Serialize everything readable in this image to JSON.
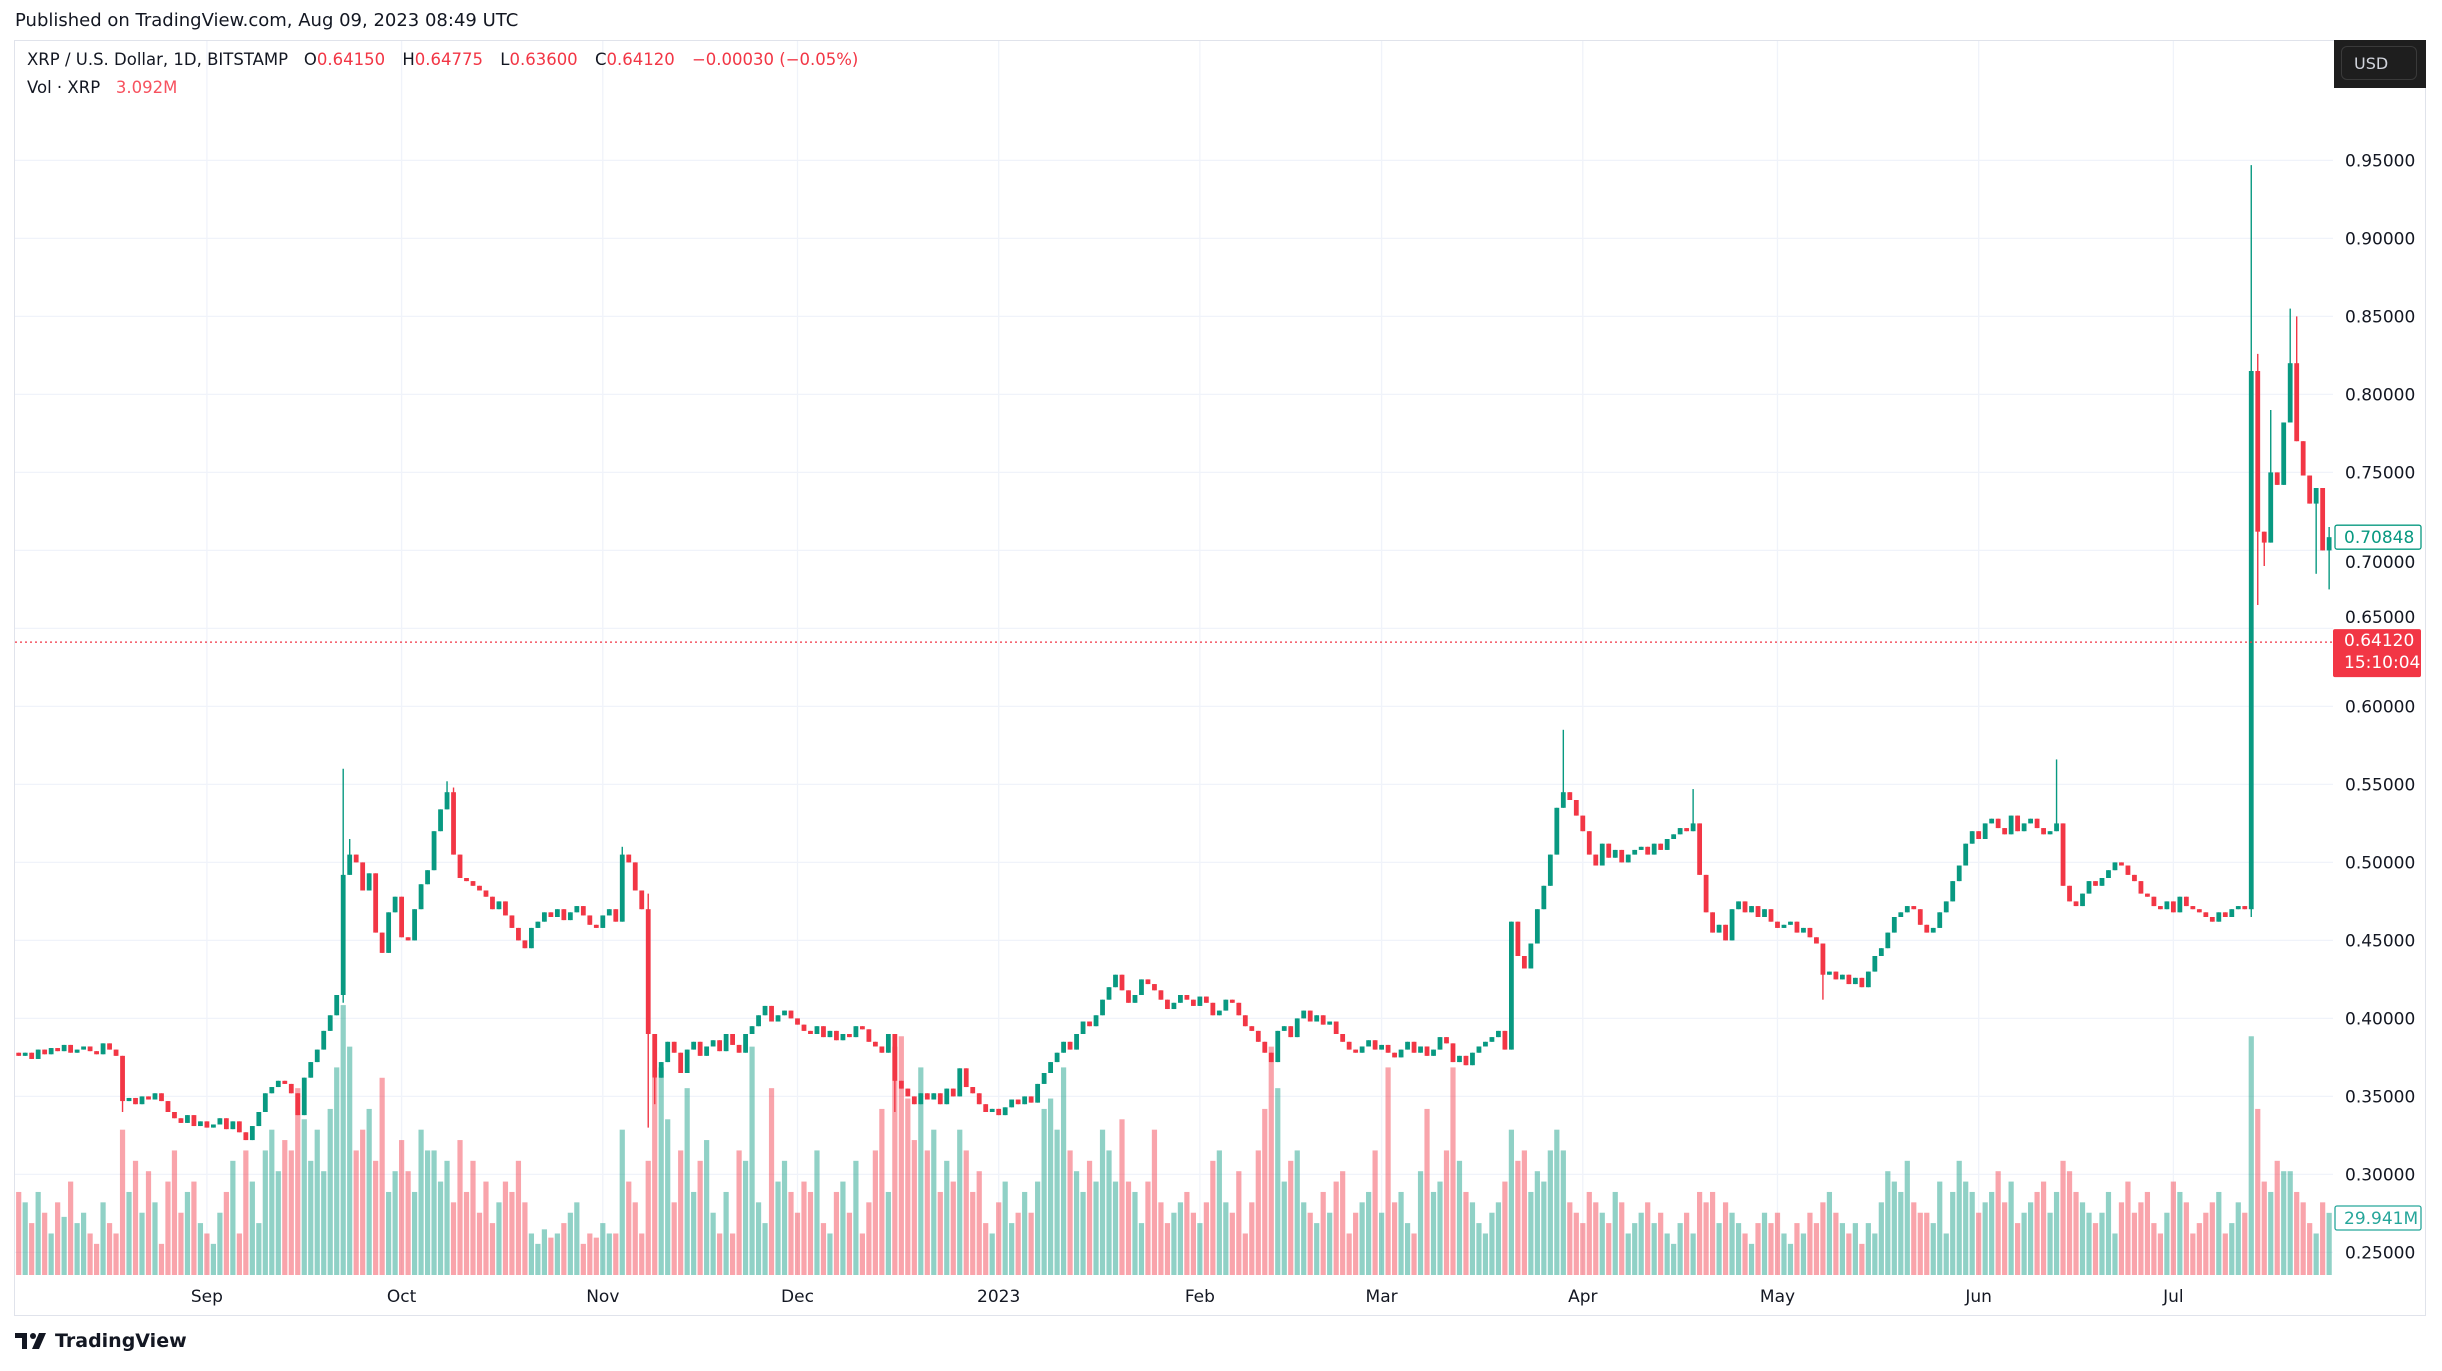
{
  "published": "Published on TradingView.com, Aug 09, 2023 08:49 UTC",
  "legend": {
    "symbol": "XRP / U.S. Dollar, 1D, BITSTAMP",
    "o_label": "O",
    "o": "0.64150",
    "h_label": "H",
    "h": "0.64775",
    "l_label": "L",
    "l": "0.63600",
    "c_label": "C",
    "c": "0.64120",
    "change": "−0.00030 (−0.05%)",
    "vol_label": "Vol · XRP",
    "vol": "3.092M"
  },
  "currency_button": "USD",
  "price_markers": {
    "last_candle_close": "0.70848",
    "current_price": "0.64120",
    "countdown": "15:10:04",
    "last_volume": "29.941M"
  },
  "footer": {
    "logo_text": "TradingView"
  },
  "colors": {
    "up": "#089981",
    "down": "#f23645",
    "grid": "#f0f3fa",
    "text": "#131722"
  },
  "chart_data": {
    "type": "candlestick",
    "interval": "1D",
    "x_start": "2022-08-03",
    "ylim": [
      0.22,
      0.98
    ],
    "current_price": 0.6412,
    "grid": true,
    "y_ticks": [
      "0.25000",
      "0.30000",
      "0.35000",
      "0.40000",
      "0.45000",
      "0.50000",
      "0.55000",
      "0.60000",
      "0.65000",
      "0.70000",
      "0.75000",
      "0.80000",
      "0.85000",
      "0.90000",
      "0.95000"
    ],
    "x_ticks": [
      {
        "label": "Sep",
        "date": "2022-09-01"
      },
      {
        "label": "Oct",
        "date": "2022-10-01"
      },
      {
        "label": "Nov",
        "date": "2022-11-01"
      },
      {
        "label": "Dec",
        "date": "2022-12-01"
      },
      {
        "label": "2023",
        "date": "2023-01-01"
      },
      {
        "label": "Feb",
        "date": "2023-02-01"
      },
      {
        "label": "Mar",
        "date": "2023-03-01"
      },
      {
        "label": "Apr",
        "date": "2023-04-01"
      },
      {
        "label": "May",
        "date": "2023-05-01"
      },
      {
        "label": "Jun",
        "date": "2023-06-01"
      },
      {
        "label": "Jul",
        "date": "2023-07-01"
      }
    ],
    "first_open": 0.378,
    "close": [
      0.376,
      0.378,
      0.374,
      0.38,
      0.377,
      0.381,
      0.379,
      0.383,
      0.378,
      0.38,
      0.382,
      0.379,
      0.377,
      0.384,
      0.38,
      0.376,
      0.347,
      0.349,
      0.345,
      0.35,
      0.348,
      0.352,
      0.347,
      0.34,
      0.336,
      0.333,
      0.338,
      0.331,
      0.334,
      0.33,
      0.332,
      0.336,
      0.329,
      0.334,
      0.327,
      0.322,
      0.331,
      0.34,
      0.352,
      0.356,
      0.36,
      0.358,
      0.352,
      0.338,
      0.362,
      0.372,
      0.38,
      0.392,
      0.402,
      0.415,
      0.492,
      0.505,
      0.5,
      0.482,
      0.493,
      0.455,
      0.442,
      0.468,
      0.478,
      0.452,
      0.45,
      0.47,
      0.486,
      0.495,
      0.52,
      0.534,
      0.545,
      0.505,
      0.49,
      0.488,
      0.485,
      0.482,
      0.478,
      0.47,
      0.475,
      0.466,
      0.458,
      0.45,
      0.445,
      0.458,
      0.462,
      0.468,
      0.465,
      0.47,
      0.463,
      0.468,
      0.472,
      0.466,
      0.46,
      0.458,
      0.466,
      0.47,
      0.462,
      0.505,
      0.5,
      0.482,
      0.47,
      0.39,
      0.362,
      0.372,
      0.385,
      0.378,
      0.365,
      0.38,
      0.385,
      0.376,
      0.382,
      0.386,
      0.379,
      0.39,
      0.383,
      0.378,
      0.39,
      0.395,
      0.402,
      0.408,
      0.398,
      0.402,
      0.405,
      0.4,
      0.396,
      0.392,
      0.39,
      0.395,
      0.388,
      0.392,
      0.386,
      0.39,
      0.388,
      0.395,
      0.393,
      0.385,
      0.382,
      0.378,
      0.39,
      0.36,
      0.355,
      0.35,
      0.345,
      0.352,
      0.348,
      0.352,
      0.345,
      0.355,
      0.35,
      0.368,
      0.356,
      0.352,
      0.345,
      0.34,
      0.342,
      0.338,
      0.343,
      0.348,
      0.345,
      0.35,
      0.346,
      0.358,
      0.365,
      0.372,
      0.378,
      0.385,
      0.38,
      0.39,
      0.398,
      0.395,
      0.402,
      0.412,
      0.42,
      0.428,
      0.418,
      0.41,
      0.415,
      0.425,
      0.422,
      0.418,
      0.412,
      0.406,
      0.41,
      0.415,
      0.412,
      0.408,
      0.414,
      0.41,
      0.402,
      0.405,
      0.412,
      0.41,
      0.402,
      0.395,
      0.392,
      0.385,
      0.378,
      0.372,
      0.392,
      0.395,
      0.388,
      0.4,
      0.405,
      0.398,
      0.402,
      0.396,
      0.398,
      0.39,
      0.385,
      0.38,
      0.378,
      0.382,
      0.386,
      0.38,
      0.383,
      0.378,
      0.375,
      0.38,
      0.385,
      0.378,
      0.382,
      0.376,
      0.38,
      0.388,
      0.384,
      0.372,
      0.376,
      0.37,
      0.378,
      0.382,
      0.385,
      0.388,
      0.392,
      0.38,
      0.462,
      0.44,
      0.432,
      0.448,
      0.47,
      0.485,
      0.505,
      0.535,
      0.545,
      0.54,
      0.53,
      0.52,
      0.505,
      0.498,
      0.512,
      0.503,
      0.508,
      0.5,
      0.505,
      0.508,
      0.51,
      0.505,
      0.512,
      0.508,
      0.515,
      0.518,
      0.522,
      0.52,
      0.525,
      0.492,
      0.468,
      0.455,
      0.46,
      0.45,
      0.47,
      0.475,
      0.468,
      0.472,
      0.465,
      0.47,
      0.462,
      0.458,
      0.46,
      0.462,
      0.455,
      0.458,
      0.452,
      0.448,
      0.428,
      0.43,
      0.425,
      0.428,
      0.422,
      0.426,
      0.42,
      0.43,
      0.44,
      0.445,
      0.455,
      0.465,
      0.468,
      0.472,
      0.47,
      0.46,
      0.455,
      0.458,
      0.468,
      0.475,
      0.488,
      0.498,
      0.512,
      0.52,
      0.515,
      0.525,
      0.528,
      0.522,
      0.518,
      0.53,
      0.52,
      0.525,
      0.528,
      0.522,
      0.518,
      0.52,
      0.525,
      0.485,
      0.475,
      0.472,
      0.48,
      0.488,
      0.485,
      0.49,
      0.495,
      0.5,
      0.498,
      0.492,
      0.488,
      0.48,
      0.478,
      0.472,
      0.47,
      0.475,
      0.468,
      0.478,
      0.472,
      0.47,
      0.468,
      0.465,
      0.462,
      0.468,
      0.465,
      0.47,
      0.472,
      0.47,
      0.815,
      0.712,
      0.705,
      0.75,
      0.742,
      0.782,
      0.82,
      0.77,
      0.748,
      0.73,
      0.74,
      0.7,
      0.70848
    ],
    "high": {
      "50": 0.56,
      "51": 0.515,
      "66": 0.552,
      "67": 0.548,
      "93": 0.51,
      "97": 0.48,
      "238": 0.585,
      "258": 0.547,
      "314": 0.566,
      "344": 0.947,
      "345": 0.826,
      "347": 0.79,
      "350": 0.855,
      "351": 0.85,
      "356": 0.715
    },
    "low": {
      "16": 0.34,
      "50": 0.41,
      "97": 0.33,
      "98": 0.345,
      "135": 0.34,
      "230": 0.38,
      "278": 0.412,
      "344": 0.465,
      "345": 0.665,
      "346": 0.69,
      "354": 0.685,
      "356": 0.675
    },
    "volume_unit": "M",
    "volume": [
      40,
      35,
      25,
      40,
      30,
      20,
      35,
      28,
      45,
      25,
      30,
      20,
      15,
      35,
      25,
      20,
      70,
      40,
      55,
      30,
      50,
      35,
      15,
      45,
      60,
      30,
      40,
      45,
      25,
      20,
      15,
      30,
      40,
      55,
      20,
      60,
      45,
      25,
      60,
      70,
      50,
      65,
      60,
      90,
      75,
      55,
      70,
      50,
      80,
      100,
      130,
      110,
      60,
      70,
      80,
      55,
      95,
      40,
      50,
      65,
      50,
      40,
      70,
      60,
      60,
      45,
      55,
      35,
      65,
      40,
      55,
      30,
      45,
      25,
      35,
      45,
      40,
      55,
      35,
      20,
      15,
      22,
      18,
      20,
      25,
      30,
      35,
      15,
      20,
      18,
      25,
      20,
      20,
      70,
      45,
      35,
      20,
      55,
      95,
      100,
      75,
      35,
      60,
      90,
      40,
      55,
      65,
      30,
      20,
      40,
      20,
      60,
      55,
      110,
      35,
      25,
      90,
      45,
      55,
      40,
      30,
      45,
      40,
      60,
      25,
      20,
      40,
      45,
      30,
      55,
      20,
      35,
      60,
      80,
      40,
      110,
      115,
      85,
      65,
      100,
      60,
      70,
      40,
      55,
      45,
      70,
      60,
      40,
      50,
      25,
      20,
      35,
      45,
      25,
      30,
      40,
      30,
      45,
      80,
      85,
      70,
      100,
      60,
      50,
      40,
      55,
      45,
      70,
      60,
      45,
      75,
      45,
      40,
      25,
      45,
      70,
      35,
      25,
      30,
      35,
      40,
      30,
      25,
      35,
      55,
      60,
      35,
      30,
      50,
      20,
      35,
      60,
      80,
      110,
      90,
      45,
      55,
      60,
      35,
      30,
      25,
      40,
      30,
      45,
      50,
      20,
      30,
      35,
      40,
      60,
      30,
      100,
      35,
      40,
      25,
      20,
      50,
      80,
      40,
      45,
      60,
      100,
      55,
      40,
      35,
      25,
      20,
      30,
      35,
      45,
      70,
      55,
      60,
      40,
      50,
      45,
      60,
      70,
      60,
      35,
      30,
      25,
      40,
      35,
      30,
      25,
      40,
      35,
      20,
      25,
      30,
      35,
      25,
      30,
      20,
      15,
      25,
      30,
      20,
      40,
      35,
      40,
      25,
      35,
      30,
      25,
      20,
      15,
      25,
      30,
      25,
      30,
      20,
      15,
      25,
      20,
      30,
      25,
      35,
      40,
      30,
      25,
      20,
      25,
      15,
      25,
      20,
      35,
      50,
      45,
      40,
      55,
      35,
      30,
      30,
      25,
      45,
      20,
      40,
      55,
      45,
      40,
      30,
      35,
      40,
      50,
      35,
      45,
      25,
      30,
      35,
      40,
      45,
      30,
      40,
      55,
      50,
      40,
      35,
      30,
      25,
      30,
      40,
      20,
      35,
      45,
      30,
      35,
      40,
      25,
      20,
      30,
      45,
      40,
      35,
      20,
      25,
      30,
      35,
      40,
      20,
      25,
      35,
      30,
      115,
      80,
      45,
      40,
      55,
      50,
      50,
      40,
      35,
      25,
      20,
      35,
      29.941
    ]
  }
}
